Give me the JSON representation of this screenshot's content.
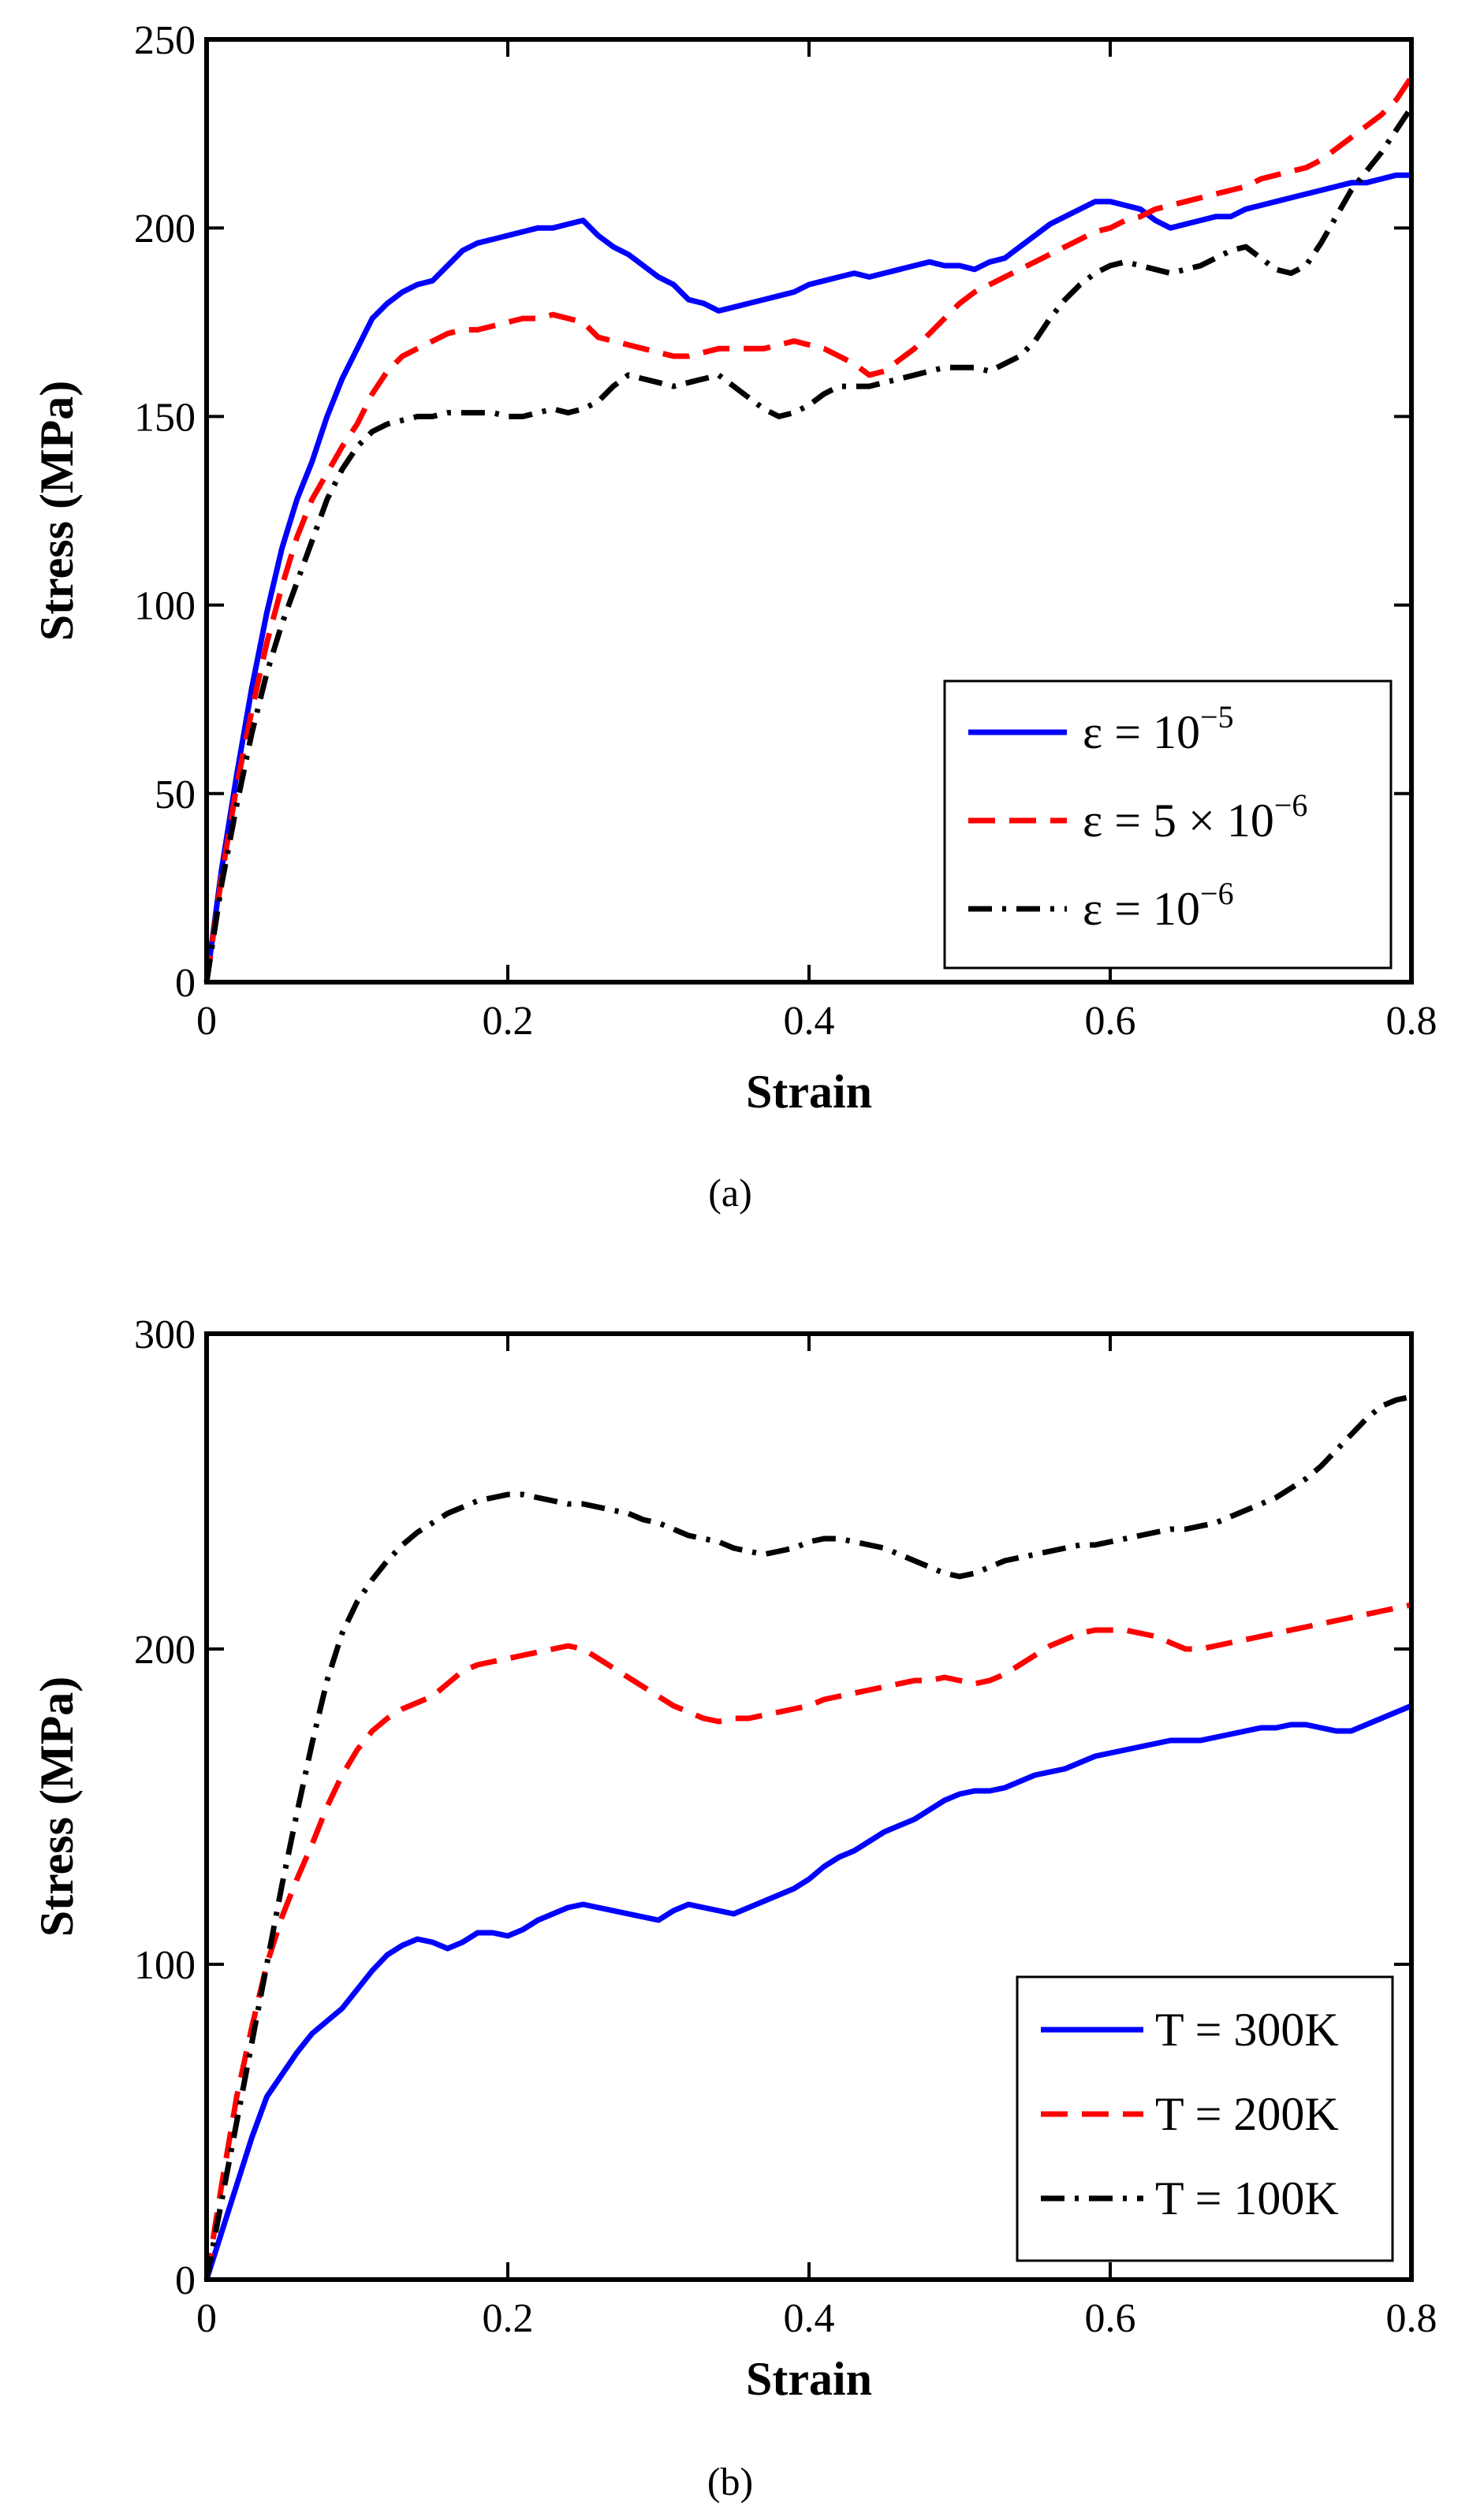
{
  "chart_data": [
    {
      "id": "a",
      "type": "line",
      "caption": "(a)",
      "xlabel": "Strain",
      "ylabel": "Stress (MPa)",
      "xlim": [
        0,
        0.8
      ],
      "ylim": [
        0,
        250
      ],
      "xticks": [
        0,
        0.2,
        0.4,
        0.6,
        0.8
      ],
      "xtick_labels": [
        "0",
        "0.2",
        "0.4",
        "0.6",
        "0.8"
      ],
      "yticks": [
        0,
        50,
        100,
        150,
        200,
        250
      ],
      "ytick_labels": [
        "0",
        "50",
        "100",
        "150",
        "200",
        "250"
      ],
      "legend_position": "bottom-right",
      "series": [
        {
          "name": "ε = 10^-5",
          "legend": {
            "base": "ε = 10",
            "sup": "−5"
          },
          "color": "#0000ff",
          "style": "solid",
          "x": [
            0,
            0.01,
            0.02,
            0.03,
            0.04,
            0.05,
            0.06,
            0.07,
            0.08,
            0.09,
            0.1,
            0.11,
            0.12,
            0.13,
            0.14,
            0.15,
            0.16,
            0.17,
            0.18,
            0.19,
            0.2,
            0.21,
            0.22,
            0.23,
            0.24,
            0.25,
            0.26,
            0.27,
            0.28,
            0.29,
            0.3,
            0.31,
            0.32,
            0.33,
            0.34,
            0.35,
            0.36,
            0.37,
            0.38,
            0.39,
            0.4,
            0.41,
            0.42,
            0.43,
            0.44,
            0.45,
            0.46,
            0.47,
            0.48,
            0.49,
            0.5,
            0.51,
            0.52,
            0.53,
            0.54,
            0.55,
            0.56,
            0.57,
            0.58,
            0.59,
            0.6,
            0.61,
            0.62,
            0.63,
            0.64,
            0.65,
            0.66,
            0.67,
            0.68,
            0.69,
            0.7,
            0.71,
            0.72,
            0.73,
            0.74,
            0.75,
            0.76,
            0.77,
            0.78,
            0.79,
            0.8
          ],
          "y": [
            0,
            30,
            55,
            78,
            98,
            115,
            128,
            138,
            150,
            160,
            168,
            176,
            180,
            183,
            185,
            186,
            190,
            194,
            196,
            197,
            198,
            199,
            200,
            200,
            201,
            202,
            198,
            195,
            193,
            190,
            187,
            185,
            181,
            180,
            178,
            179,
            180,
            181,
            182,
            183,
            185,
            186,
            187,
            188,
            187,
            188,
            189,
            190,
            191,
            190,
            190,
            189,
            191,
            192,
            195,
            198,
            201,
            203,
            205,
            207,
            207,
            206,
            205,
            202,
            200,
            201,
            202,
            203,
            203,
            205,
            206,
            207,
            208,
            209,
            210,
            211,
            212,
            212,
            213,
            214,
            214
          ]
        },
        {
          "name": "ε = 5 × 10^-6",
          "legend": {
            "base": "ε = 5 × 10",
            "sup": "−6"
          },
          "color": "#ff0000",
          "style": "dashed",
          "x": [
            0,
            0.01,
            0.02,
            0.03,
            0.04,
            0.05,
            0.06,
            0.07,
            0.08,
            0.09,
            0.1,
            0.11,
            0.12,
            0.13,
            0.14,
            0.15,
            0.16,
            0.17,
            0.18,
            0.19,
            0.2,
            0.21,
            0.22,
            0.23,
            0.24,
            0.25,
            0.26,
            0.27,
            0.28,
            0.29,
            0.3,
            0.31,
            0.32,
            0.33,
            0.34,
            0.35,
            0.36,
            0.37,
            0.38,
            0.39,
            0.4,
            0.41,
            0.42,
            0.43,
            0.44,
            0.45,
            0.46,
            0.47,
            0.48,
            0.49,
            0.5,
            0.51,
            0.52,
            0.53,
            0.54,
            0.55,
            0.56,
            0.57,
            0.58,
            0.59,
            0.6,
            0.61,
            0.62,
            0.63,
            0.64,
            0.65,
            0.66,
            0.67,
            0.68,
            0.69,
            0.7,
            0.71,
            0.72,
            0.73,
            0.74,
            0.75,
            0.76,
            0.77,
            0.78,
            0.79,
            0.8
          ],
          "y": [
            0,
            28,
            52,
            72,
            90,
            105,
            118,
            128,
            135,
            142,
            148,
            156,
            162,
            166,
            168,
            170,
            172,
            173,
            173,
            174,
            175,
            176,
            176,
            177,
            176,
            175,
            171,
            170,
            169,
            168,
            167,
            166,
            166,
            167,
            168,
            168,
            168,
            168,
            169,
            170,
            169,
            168,
            166,
            164,
            161,
            162,
            165,
            168,
            172,
            176,
            180,
            183,
            185,
            187,
            189,
            191,
            193,
            195,
            197,
            199,
            200,
            202,
            203,
            205,
            206,
            207,
            208,
            209,
            210,
            211,
            213,
            214,
            215,
            216,
            218,
            221,
            224,
            227,
            230,
            234,
            240
          ]
        },
        {
          "name": "ε = 10^-6",
          "legend": {
            "base": "ε = 10",
            "sup": "−6"
          },
          "color": "#000000",
          "style": "dashdot",
          "x": [
            0,
            0.01,
            0.02,
            0.03,
            0.04,
            0.05,
            0.06,
            0.07,
            0.08,
            0.09,
            0.1,
            0.11,
            0.12,
            0.13,
            0.14,
            0.15,
            0.16,
            0.17,
            0.18,
            0.19,
            0.2,
            0.21,
            0.22,
            0.23,
            0.24,
            0.25,
            0.26,
            0.27,
            0.28,
            0.29,
            0.3,
            0.31,
            0.32,
            0.33,
            0.34,
            0.35,
            0.36,
            0.37,
            0.38,
            0.39,
            0.4,
            0.41,
            0.42,
            0.43,
            0.44,
            0.45,
            0.46,
            0.47,
            0.48,
            0.49,
            0.5,
            0.51,
            0.52,
            0.53,
            0.54,
            0.55,
            0.56,
            0.57,
            0.58,
            0.59,
            0.6,
            0.61,
            0.62,
            0.63,
            0.64,
            0.65,
            0.66,
            0.67,
            0.68,
            0.69,
            0.7,
            0.71,
            0.72,
            0.73,
            0.74,
            0.75,
            0.76,
            0.77,
            0.78,
            0.79,
            0.8
          ],
          "y": [
            0,
            26,
            47,
            66,
            82,
            95,
            106,
            117,
            128,
            136,
            142,
            146,
            148,
            149,
            150,
            150,
            151,
            151,
            151,
            151,
            150,
            150,
            151,
            152,
            151,
            152,
            154,
            158,
            161,
            160,
            159,
            158,
            159,
            160,
            161,
            158,
            155,
            152,
            150,
            151,
            153,
            156,
            158,
            158,
            158,
            159,
            160,
            161,
            162,
            163,
            163,
            163,
            162,
            164,
            166,
            170,
            176,
            181,
            185,
            188,
            190,
            191,
            190,
            189,
            188,
            189,
            190,
            192,
            194,
            195,
            192,
            189,
            188,
            190,
            196,
            203,
            210,
            215,
            220,
            226,
            232
          ]
        }
      ]
    },
    {
      "id": "b",
      "type": "line",
      "caption": "(b)",
      "xlabel": "Strain",
      "ylabel": "Stress (MPa)",
      "xlim": [
        0,
        0.8
      ],
      "ylim": [
        0,
        300
      ],
      "xticks": [
        0,
        0.2,
        0.4,
        0.6,
        0.8
      ],
      "xtick_labels": [
        "0",
        "0.2",
        "0.4",
        "0.6",
        "0.8"
      ],
      "yticks": [
        0,
        100,
        200,
        300
      ],
      "ytick_labels": [
        "0",
        "100",
        "200",
        "300"
      ],
      "legend_position": "bottom-right",
      "series": [
        {
          "name": "T = 300K",
          "legend": {
            "base": "T = 300K",
            "sup": ""
          },
          "color": "#0000ff",
          "style": "solid",
          "x": [
            0,
            0.01,
            0.02,
            0.03,
            0.04,
            0.05,
            0.06,
            0.07,
            0.08,
            0.09,
            0.1,
            0.11,
            0.12,
            0.13,
            0.14,
            0.15,
            0.16,
            0.17,
            0.18,
            0.19,
            0.2,
            0.21,
            0.22,
            0.23,
            0.24,
            0.25,
            0.26,
            0.27,
            0.28,
            0.29,
            0.3,
            0.31,
            0.32,
            0.33,
            0.34,
            0.35,
            0.36,
            0.37,
            0.38,
            0.39,
            0.4,
            0.41,
            0.42,
            0.43,
            0.44,
            0.45,
            0.46,
            0.47,
            0.48,
            0.49,
            0.5,
            0.51,
            0.52,
            0.53,
            0.54,
            0.55,
            0.56,
            0.57,
            0.58,
            0.59,
            0.6,
            0.61,
            0.62,
            0.63,
            0.64,
            0.65,
            0.66,
            0.67,
            0.68,
            0.69,
            0.7,
            0.71,
            0.72,
            0.73,
            0.74,
            0.75,
            0.76,
            0.77,
            0.78,
            0.79,
            0.8
          ],
          "y": [
            0,
            15,
            30,
            45,
            58,
            65,
            72,
            78,
            82,
            86,
            92,
            98,
            103,
            106,
            108,
            107,
            105,
            107,
            110,
            110,
            109,
            111,
            114,
            116,
            118,
            119,
            118,
            117,
            116,
            115,
            114,
            117,
            119,
            118,
            117,
            116,
            118,
            120,
            122,
            124,
            127,
            131,
            134,
            136,
            139,
            142,
            144,
            146,
            149,
            152,
            154,
            155,
            155,
            156,
            158,
            160,
            161,
            162,
            164,
            166,
            167,
            168,
            169,
            170,
            171,
            171,
            171,
            172,
            173,
            174,
            175,
            175,
            176,
            176,
            175,
            174,
            174,
            176,
            178,
            180,
            182
          ]
        },
        {
          "name": "T = 200K",
          "legend": {
            "base": "T = 200K",
            "sup": ""
          },
          "color": "#ff0000",
          "style": "dashed",
          "x": [
            0,
            0.01,
            0.02,
            0.03,
            0.04,
            0.05,
            0.06,
            0.07,
            0.08,
            0.09,
            0.1,
            0.11,
            0.12,
            0.13,
            0.14,
            0.15,
            0.16,
            0.17,
            0.18,
            0.19,
            0.2,
            0.21,
            0.22,
            0.23,
            0.24,
            0.25,
            0.26,
            0.27,
            0.28,
            0.29,
            0.3,
            0.31,
            0.32,
            0.33,
            0.34,
            0.35,
            0.36,
            0.37,
            0.38,
            0.39,
            0.4,
            0.41,
            0.42,
            0.43,
            0.44,
            0.45,
            0.46,
            0.47,
            0.48,
            0.49,
            0.5,
            0.51,
            0.52,
            0.53,
            0.54,
            0.55,
            0.56,
            0.57,
            0.58,
            0.59,
            0.6,
            0.61,
            0.62,
            0.63,
            0.64,
            0.65,
            0.66,
            0.67,
            0.68,
            0.69,
            0.7,
            0.71,
            0.72,
            0.73,
            0.74,
            0.75,
            0.76,
            0.77,
            0.78,
            0.79,
            0.8
          ],
          "y": [
            0,
            30,
            58,
            80,
            100,
            115,
            127,
            138,
            150,
            160,
            168,
            174,
            178,
            181,
            183,
            185,
            189,
            193,
            195,
            196,
            197,
            198,
            199,
            200,
            201,
            200,
            197,
            194,
            191,
            188,
            185,
            182,
            180,
            178,
            177,
            178,
            178,
            179,
            180,
            181,
            182,
            184,
            185,
            186,
            187,
            188,
            189,
            190,
            190,
            191,
            190,
            189,
            190,
            192,
            195,
            198,
            201,
            203,
            205,
            206,
            206,
            206,
            205,
            204,
            202,
            200,
            200,
            201,
            202,
            203,
            204,
            205,
            206,
            207,
            208,
            209,
            210,
            211,
            212,
            213,
            214
          ]
        },
        {
          "name": "T = 100K",
          "legend": {
            "base": "T = 100K",
            "sup": ""
          },
          "color": "#000000",
          "style": "dashdot",
          "x": [
            0,
            0.01,
            0.02,
            0.03,
            0.04,
            0.05,
            0.06,
            0.07,
            0.08,
            0.09,
            0.1,
            0.11,
            0.12,
            0.13,
            0.14,
            0.15,
            0.16,
            0.17,
            0.18,
            0.19,
            0.2,
            0.21,
            0.22,
            0.23,
            0.24,
            0.25,
            0.26,
            0.27,
            0.28,
            0.29,
            0.3,
            0.31,
            0.32,
            0.33,
            0.34,
            0.35,
            0.36,
            0.37,
            0.38,
            0.39,
            0.4,
            0.41,
            0.42,
            0.43,
            0.44,
            0.45,
            0.46,
            0.47,
            0.48,
            0.49,
            0.5,
            0.51,
            0.52,
            0.53,
            0.54,
            0.55,
            0.56,
            0.57,
            0.58,
            0.59,
            0.6,
            0.61,
            0.62,
            0.63,
            0.64,
            0.65,
            0.66,
            0.67,
            0.68,
            0.69,
            0.7,
            0.71,
            0.72,
            0.73,
            0.74,
            0.75,
            0.76,
            0.77,
            0.78,
            0.79,
            0.8
          ],
          "y": [
            0,
            25,
            50,
            75,
            100,
            125,
            148,
            170,
            190,
            205,
            215,
            222,
            228,
            233,
            237,
            240,
            243,
            245,
            247,
            248,
            249,
            249,
            248,
            247,
            246,
            246,
            245,
            244,
            243,
            241,
            240,
            238,
            236,
            235,
            234,
            232,
            231,
            230,
            231,
            232,
            234,
            235,
            235,
            234,
            233,
            232,
            230,
            228,
            226,
            224,
            223,
            224,
            226,
            228,
            229,
            230,
            231,
            232,
            233,
            233,
            234,
            235,
            236,
            237,
            238,
            238,
            239,
            240,
            242,
            244,
            246,
            248,
            251,
            254,
            258,
            263,
            268,
            273,
            277,
            279,
            280
          ]
        }
      ]
    }
  ]
}
